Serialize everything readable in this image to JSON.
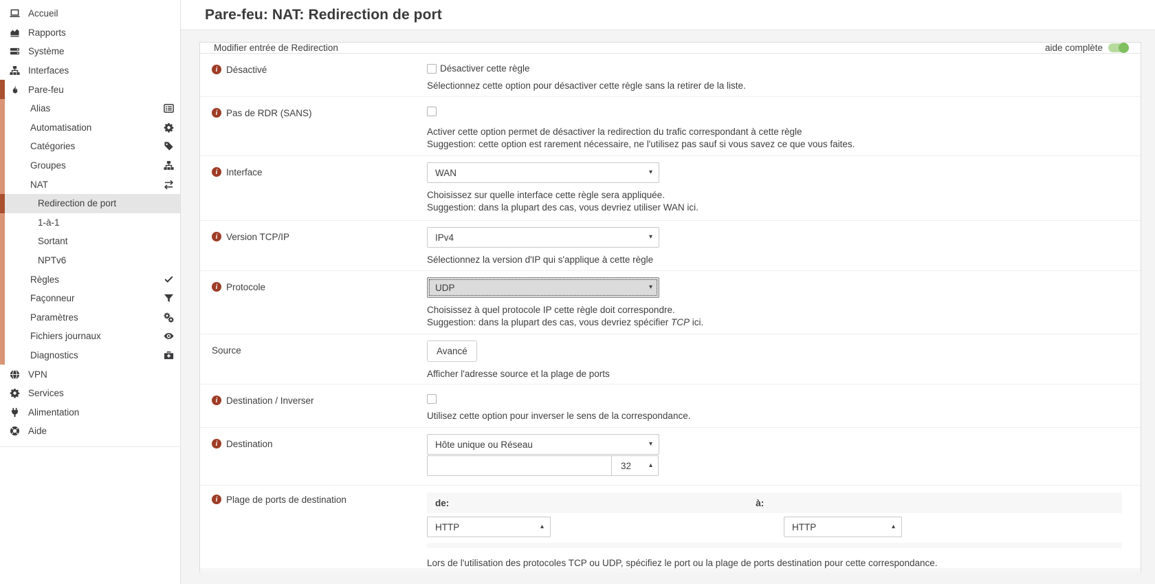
{
  "page": {
    "title": "Pare-feu: NAT: Redirection de port"
  },
  "sidebar": {
    "items": [
      {
        "label": "Accueil",
        "level": 1,
        "icon": "laptop-icon"
      },
      {
        "label": "Rapports",
        "level": 1,
        "icon": "area-chart-icon"
      },
      {
        "label": "Système",
        "level": 1,
        "icon": "server-icon"
      },
      {
        "label": "Interfaces",
        "level": 1,
        "icon": "sitemap-icon"
      },
      {
        "label": "Pare-feu",
        "level": 1,
        "icon": "fire-icon"
      },
      {
        "label": "Alias",
        "level": 2,
        "icon_right": "list-icon"
      },
      {
        "label": "Automatisation",
        "level": 2,
        "icon_right": "gear-icon"
      },
      {
        "label": "Catégories",
        "level": 2,
        "icon_right": "tag-icon"
      },
      {
        "label": "Groupes",
        "level": 2,
        "icon_right": "sitemap-icon"
      },
      {
        "label": "NAT",
        "level": 2,
        "icon_right": "exchange-icon"
      },
      {
        "label": "Redirection de port",
        "level": 3,
        "active": true
      },
      {
        "label": "1-à-1",
        "level": 3
      },
      {
        "label": "Sortant",
        "level": 3
      },
      {
        "label": "NPTv6",
        "level": 3
      },
      {
        "label": "Règles",
        "level": 2,
        "icon_right": "check-icon"
      },
      {
        "label": "Façonneur",
        "level": 2,
        "icon_right": "filter-icon"
      },
      {
        "label": "Paramètres",
        "level": 2,
        "icon_right": "gears-icon"
      },
      {
        "label": "Fichiers journaux",
        "level": 2,
        "icon_right": "eye-icon"
      },
      {
        "label": "Diagnostics",
        "level": 2,
        "icon_right": "medkit-icon"
      },
      {
        "label": "VPN",
        "level": 1,
        "icon": "globe-icon"
      },
      {
        "label": "Services",
        "level": 1,
        "icon": "gear-icon"
      },
      {
        "label": "Alimentation",
        "level": 1,
        "icon": "plug-icon"
      },
      {
        "label": "Aide",
        "level": 1,
        "icon": "lifering-icon"
      }
    ]
  },
  "panel": {
    "header": "Modifier entrée de Redirection",
    "help_toggle_label": "aide complète",
    "help_toggle_state": "on"
  },
  "colors": {
    "accent_dark": "#a9502e",
    "accent_light": "#d99575",
    "info_icon": "#9e3c26",
    "toggle_green": "#7fbf5f"
  },
  "form": {
    "disabled": {
      "label": "Désactivé",
      "checkbox_label": "Désactiver cette règle",
      "checked": false,
      "help": "Sélectionnez cette option pour désactiver cette règle sans la retirer de la liste."
    },
    "nordr": {
      "label": "Pas de RDR (SANS)",
      "checked": false,
      "help1": "Activer cette option permet de désactiver la redirection du trafic correspondant à cette règle",
      "help2": "Suggestion: cette option est rarement nécessaire, ne l'utilisez pas sauf si vous savez ce que vous faites."
    },
    "interface": {
      "label": "Interface",
      "value": "WAN",
      "help1": "Choisissez sur quelle interface cette règle sera appliquée.",
      "help2": "Suggestion: dans la plupart des cas, vous devriez utiliser WAN ici."
    },
    "ipversion": {
      "label": "Version TCP/IP",
      "value": "IPv4",
      "help1": "Sélectionnez la version d'IP qui s'applique à cette règle"
    },
    "protocol": {
      "label": "Protocole",
      "value": "UDP",
      "help1": "Choisissez à quel protocole IP cette règle doit correspondre.",
      "help2_prefix": "Suggestion: dans la plupart des cas, vous devriez spécifier ",
      "help2_em": "TCP",
      "help2_suffix": " ici."
    },
    "source": {
      "label": "Source",
      "button_label": "Avancé",
      "help1": "Afficher l'adresse source et la plage de ports"
    },
    "dest_invert": {
      "label": "Destination / Inverser",
      "checked": false,
      "help1": "Utilisez cette option pour inverser le sens de la correspondance."
    },
    "destination": {
      "label": "Destination",
      "type_value": "Hôte unique ou Réseau",
      "address_value": "",
      "mask_value": "32"
    },
    "port_range": {
      "label": "Plage de ports de destination",
      "from_label": "de:",
      "to_label": "à:",
      "from_value": "HTTP",
      "to_value": "HTTP",
      "help1": "Lors de l'utilisation des protocoles TCP ou UDP, spécifiez le port ou la plage de ports destination pour cette correspondance."
    }
  }
}
